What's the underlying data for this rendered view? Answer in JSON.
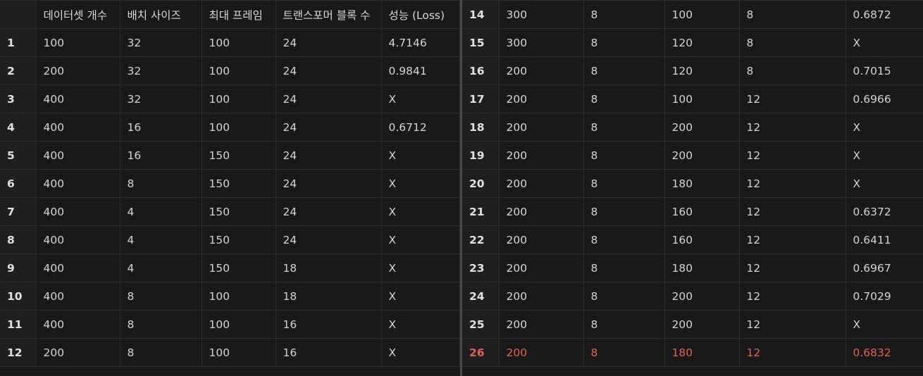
{
  "left_table": {
    "headers": [
      "",
      "데이터셋 개수",
      "배치 사이즈",
      "최대 프레임",
      "트랜스포머 블록 수",
      "성능 (Loss)"
    ],
    "rows": [
      [
        "1",
        "100",
        "32",
        "100",
        "24",
        "4.7146"
      ],
      [
        "2",
        "200",
        "32",
        "100",
        "24",
        "0.9841"
      ],
      [
        "3",
        "400",
        "32",
        "100",
        "24",
        "X"
      ],
      [
        "4",
        "400",
        "16",
        "100",
        "24",
        "0.6712"
      ],
      [
        "5",
        "400",
        "16",
        "150",
        "24",
        "X"
      ],
      [
        "6",
        "400",
        "8",
        "150",
        "24",
        "X"
      ],
      [
        "7",
        "400",
        "4",
        "150",
        "24",
        "X"
      ],
      [
        "8",
        "400",
        "4",
        "150",
        "24",
        "X"
      ],
      [
        "9",
        "400",
        "4",
        "150",
        "18",
        "X"
      ],
      [
        "10",
        "400",
        "8",
        "100",
        "18",
        "X"
      ],
      [
        "11",
        "400",
        "8",
        "100",
        "16",
        "X"
      ],
      [
        "12",
        "200",
        "8",
        "100",
        "16",
        "X"
      ]
    ]
  },
  "right_table": {
    "rows": [
      [
        "14",
        "300",
        "8",
        "100",
        "8",
        "0.6872"
      ],
      [
        "15",
        "300",
        "8",
        "120",
        "8",
        "X"
      ],
      [
        "16",
        "200",
        "8",
        "120",
        "8",
        "0.7015"
      ],
      [
        "17",
        "200",
        "8",
        "100",
        "12",
        "0.6966"
      ],
      [
        "18",
        "200",
        "8",
        "200",
        "12",
        "X"
      ],
      [
        "19",
        "200",
        "8",
        "200",
        "12",
        "X"
      ],
      [
        "20",
        "200",
        "8",
        "180",
        "12",
        "X"
      ],
      [
        "21",
        "200",
        "8",
        "160",
        "12",
        "0.6372"
      ],
      [
        "22",
        "200",
        "8",
        "160",
        "12",
        "0.6411"
      ],
      [
        "23",
        "200",
        "8",
        "180",
        "12",
        "0.6967"
      ],
      [
        "24",
        "200",
        "8",
        "200",
        "12",
        "0.7029"
      ],
      [
        "25",
        "200",
        "8",
        "200",
        "12",
        "X"
      ],
      [
        "26",
        "200",
        "8",
        "180",
        "12",
        "0.6832"
      ]
    ],
    "highlight_row_label": "26",
    "highlight_color": "#e0635a"
  }
}
